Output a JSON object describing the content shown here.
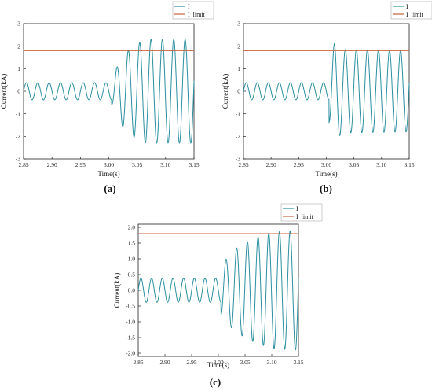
{
  "colors": {
    "current": "#2a8fa0",
    "limit": "#c8643c",
    "axis": "#222222"
  },
  "chart_data": [
    {
      "type": "line",
      "panel": "(a)",
      "xlabel": "Time(s)",
      "ylabel": "Current(kA)",
      "xlim": [
        2.85,
        3.15
      ],
      "ylim": [
        -3,
        3
      ],
      "xticks": [
        "2.85",
        "2.90",
        "2.95",
        "3.00",
        "3.05",
        "3.10",
        "3.15"
      ],
      "yticks": [
        "-3",
        "-2",
        "-1",
        "0",
        "1",
        "2",
        "3"
      ],
      "legend": [
        "I",
        "I_limit"
      ],
      "limit": 1.8,
      "frequency_hz": 50,
      "pre_fault_amplitude": 0.38,
      "fault_time": 3.005,
      "post_fault_envelope": [
        [
          3.005,
          0.6
        ],
        [
          3.025,
          1.6
        ],
        [
          3.045,
          2.05
        ],
        [
          3.065,
          2.3
        ],
        [
          3.15,
          2.3
        ]
      ]
    },
    {
      "type": "line",
      "panel": "(b)",
      "xlabel": "Time(s)",
      "ylabel": "Current(kA)",
      "xlim": [
        2.85,
        3.15
      ],
      "ylim": [
        -3,
        3
      ],
      "xticks": [
        "2.85",
        "2.90",
        "2.95",
        "3.00",
        "3.05",
        "3.10",
        "3.15"
      ],
      "yticks": [
        "-3",
        "-2",
        "-1",
        "0",
        "1",
        "2",
        "3"
      ],
      "legend": [
        "I",
        "I_limit"
      ],
      "limit": 1.8,
      "frequency_hz": 50,
      "pre_fault_amplitude": 0.38,
      "fault_time": 3.005,
      "post_fault_envelope": [
        [
          3.005,
          1.4
        ],
        [
          3.015,
          2.15
        ],
        [
          3.03,
          1.85
        ],
        [
          3.15,
          1.8
        ]
      ]
    },
    {
      "type": "line",
      "panel": "(c)",
      "xlabel": "Time(s)",
      "ylabel": "Current(kA)",
      "xlim": [
        2.85,
        3.15
      ],
      "ylim": [
        -2.1,
        2.1
      ],
      "xticks": [
        "2.85",
        "2.90",
        "2.95",
        "3.00",
        "3.05",
        "3.10",
        "3.15"
      ],
      "yticks": [
        "-2.0",
        "-1.5",
        "-1.0",
        "-0.5",
        "0.0",
        "0.5",
        "1.0",
        "1.5",
        "2.0"
      ],
      "legend": [
        "I",
        "I_limit"
      ],
      "limit": 1.8,
      "frequency_hz": 50,
      "pre_fault_amplitude": 0.38,
      "fault_time": 3.005,
      "post_fault_envelope": [
        [
          3.005,
          0.8
        ],
        [
          3.03,
          1.3
        ],
        [
          3.06,
          1.6
        ],
        [
          3.1,
          1.85
        ],
        [
          3.15,
          1.9
        ]
      ]
    }
  ]
}
